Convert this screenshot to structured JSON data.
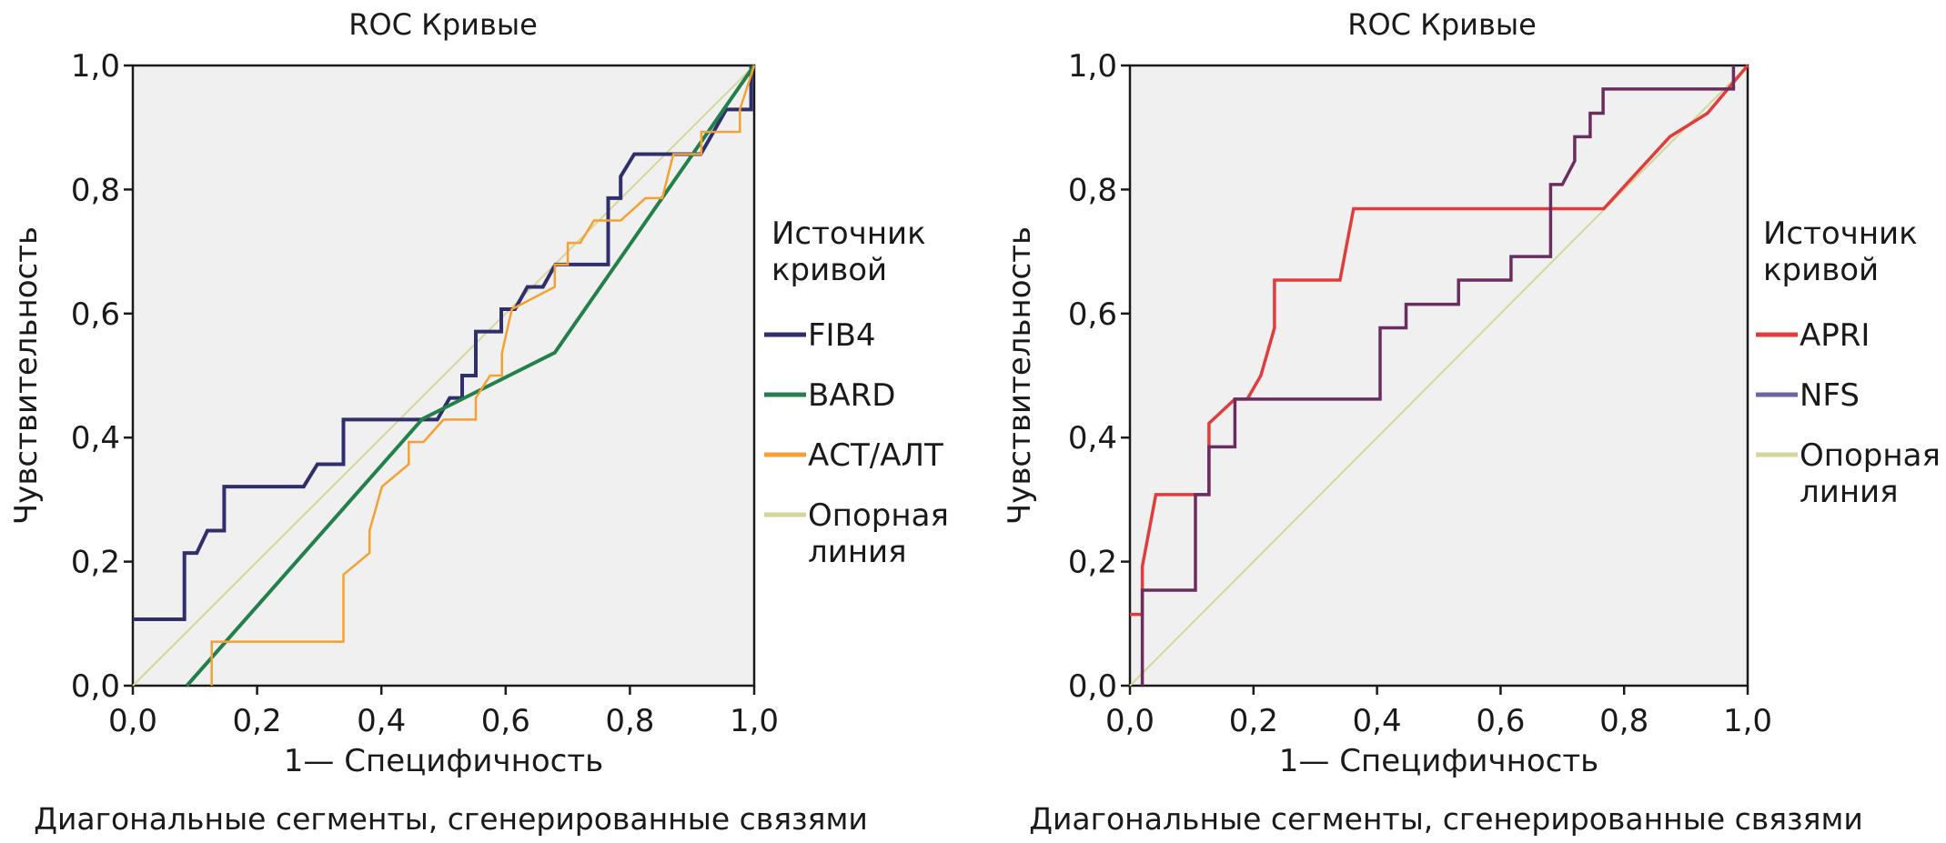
{
  "chart_data": [
    {
      "type": "line",
      "title": "ROC Кривые",
      "xlabel": "1— Специфичность",
      "ylabel": "Чувствительность",
      "note": "Диагональные сегменты, сгенерированные связями",
      "xlim": [
        0,
        1
      ],
      "ylim": [
        0,
        1
      ],
      "xtick_labels": [
        "0,0",
        "0,2",
        "0,4",
        "0,6",
        "0,8",
        "1,0"
      ],
      "ytick_labels": [
        "0,0",
        "0,2",
        "0,4",
        "0,6",
        "0,8",
        "1,0"
      ],
      "tick_values": [
        0,
        0.2,
        0.4,
        0.6,
        0.8,
        1.0
      ],
      "background": "#f0f0f0",
      "legend_title": [
        "Источник",
        "кривой"
      ],
      "legend_placement": "right",
      "series": [
        {
          "name": "FIB4",
          "color": "#2f2f6e",
          "width": 4,
          "points": [
            [
              0,
              0.107
            ],
            [
              0.083,
              0.107
            ],
            [
              0.083,
              0.214
            ],
            [
              0.103,
              0.214
            ],
            [
              0.12,
              0.25
            ],
            [
              0.147,
              0.25
            ],
            [
              0.147,
              0.321
            ],
            [
              0.275,
              0.321
            ],
            [
              0.297,
              0.357
            ],
            [
              0.339,
              0.357
            ],
            [
              0.339,
              0.429
            ],
            [
              0.49,
              0.429
            ],
            [
              0.51,
              0.464
            ],
            [
              0.53,
              0.464
            ],
            [
              0.53,
              0.5
            ],
            [
              0.552,
              0.5
            ],
            [
              0.552,
              0.571
            ],
            [
              0.593,
              0.571
            ],
            [
              0.593,
              0.607
            ],
            [
              0.615,
              0.607
            ],
            [
              0.635,
              0.643
            ],
            [
              0.66,
              0.643
            ],
            [
              0.68,
              0.679
            ],
            [
              0.765,
              0.679
            ],
            [
              0.765,
              0.786
            ],
            [
              0.785,
              0.786
            ],
            [
              0.785,
              0.821
            ],
            [
              0.807,
              0.857
            ],
            [
              0.914,
              0.857
            ],
            [
              0.955,
              0.929
            ],
            [
              0.995,
              0.929
            ],
            [
              0.995,
              1.0
            ]
          ]
        },
        {
          "name": "BARD",
          "color": "#23804a",
          "width": 4,
          "points": [
            [
              0.087,
              0
            ],
            [
              0.466,
              0.43
            ],
            [
              0.679,
              0.537
            ],
            [
              1,
              1
            ]
          ]
        },
        {
          "name": "АСТ/АЛТ",
          "color": "#f5a030",
          "width": 2.5,
          "points": [
            [
              0.127,
              0
            ],
            [
              0.127,
              0.071
            ],
            [
              0.339,
              0.071
            ],
            [
              0.339,
              0.179
            ],
            [
              0.381,
              0.214
            ],
            [
              0.381,
              0.25
            ],
            [
              0.401,
              0.321
            ],
            [
              0.444,
              0.357
            ],
            [
              0.444,
              0.393
            ],
            [
              0.468,
              0.393
            ],
            [
              0.5,
              0.429
            ],
            [
              0.552,
              0.429
            ],
            [
              0.552,
              0.464
            ],
            [
              0.575,
              0.5
            ],
            [
              0.594,
              0.5
            ],
            [
              0.594,
              0.536
            ],
            [
              0.61,
              0.607
            ],
            [
              0.679,
              0.643
            ],
            [
              0.679,
              0.679
            ],
            [
              0.7,
              0.679
            ],
            [
              0.7,
              0.714
            ],
            [
              0.72,
              0.714
            ],
            [
              0.742,
              0.75
            ],
            [
              0.785,
              0.75
            ],
            [
              0.825,
              0.786
            ],
            [
              0.852,
              0.786
            ],
            [
              0.87,
              0.857
            ],
            [
              0.915,
              0.857
            ],
            [
              0.915,
              0.893
            ],
            [
              0.977,
              0.893
            ],
            [
              0.977,
              0.929
            ],
            [
              1,
              1
            ]
          ]
        },
        {
          "name": "Опорная линия",
          "legend_lines": [
            "Опорная",
            "линия"
          ],
          "color": "#d6d69a",
          "width": 2,
          "points": [
            [
              0,
              0
            ],
            [
              1,
              1
            ]
          ]
        }
      ]
    },
    {
      "type": "line",
      "title": "ROC Кривые",
      "xlabel": "1— Специфичность",
      "ylabel": "Чувствительность",
      "note": "Диагональные сегменты, сгенерированные связями",
      "xlim": [
        0,
        1
      ],
      "ylim": [
        0,
        1
      ],
      "xtick_labels": [
        "0,0",
        "0,2",
        "0,4",
        "0,6",
        "0,8",
        "1,0"
      ],
      "ytick_labels": [
        "0,0",
        "0,2",
        "0,4",
        "0,6",
        "0,8",
        "1,0"
      ],
      "tick_values": [
        0,
        0.2,
        0.4,
        0.6,
        0.8,
        1.0
      ],
      "background": "#f0f0f0",
      "legend_title": [
        "Источник",
        "кривой"
      ],
      "legend_placement": "right",
      "series": [
        {
          "name": "APRI",
          "color": "#e03c3c",
          "width": 3.5,
          "points": [
            [
              0,
              0.115
            ],
            [
              0.02,
              0.115
            ],
            [
              0.02,
              0.192
            ],
            [
              0.042,
              0.308
            ],
            [
              0.128,
              0.308
            ],
            [
              0.128,
              0.423
            ],
            [
              0.17,
              0.462
            ],
            [
              0.19,
              0.462
            ],
            [
              0.212,
              0.5
            ],
            [
              0.234,
              0.577
            ],
            [
              0.234,
              0.654
            ],
            [
              0.34,
              0.654
            ],
            [
              0.362,
              0.769
            ],
            [
              0.767,
              0.769
            ],
            [
              0.874,
              0.885
            ],
            [
              0.935,
              0.923
            ],
            [
              1,
              1
            ]
          ]
        },
        {
          "name": "NFS",
          "color": "#6b2d60",
          "legend_color": "#6c63a8",
          "width": 3.5,
          "points": [
            [
              0.02,
              0
            ],
            [
              0.02,
              0.154
            ],
            [
              0.106,
              0.154
            ],
            [
              0.106,
              0.308
            ],
            [
              0.128,
              0.308
            ],
            [
              0.128,
              0.385
            ],
            [
              0.17,
              0.385
            ],
            [
              0.17,
              0.462
            ],
            [
              0.405,
              0.462
            ],
            [
              0.405,
              0.577
            ],
            [
              0.447,
              0.577
            ],
            [
              0.447,
              0.615
            ],
            [
              0.532,
              0.615
            ],
            [
              0.532,
              0.654
            ],
            [
              0.617,
              0.654
            ],
            [
              0.617,
              0.692
            ],
            [
              0.681,
              0.692
            ],
            [
              0.681,
              0.808
            ],
            [
              0.7,
              0.808
            ],
            [
              0.72,
              0.846
            ],
            [
              0.72,
              0.885
            ],
            [
              0.745,
              0.885
            ],
            [
              0.745,
              0.923
            ],
            [
              0.766,
              0.923
            ],
            [
              0.766,
              0.962
            ],
            [
              0.977,
              0.962
            ],
            [
              0.977,
              1.0
            ]
          ]
        },
        {
          "name": "Опорная линия",
          "legend_lines": [
            "Опорная",
            "линия"
          ],
          "color": "#d6d69a",
          "width": 2,
          "points": [
            [
              0,
              0
            ],
            [
              1,
              1
            ]
          ]
        }
      ]
    }
  ]
}
